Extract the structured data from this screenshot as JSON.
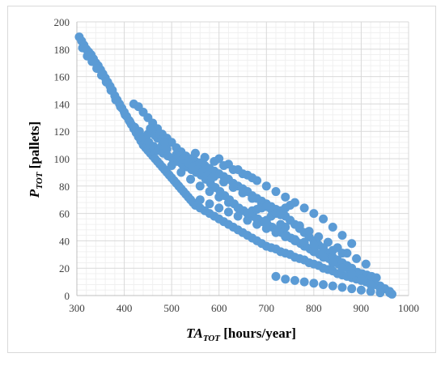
{
  "chart_data": {
    "type": "scatter",
    "title": "",
    "xlabel": {
      "main": "TA",
      "sub": "TOT",
      "unit": " [hours/year]"
    },
    "ylabel": {
      "main": "P",
      "sub": "TOT",
      "unit": " [pallets]"
    },
    "xlim": [
      300,
      1000
    ],
    "ylim": [
      0,
      200
    ],
    "x_ticks": [
      300,
      400,
      500,
      600,
      700,
      800,
      900,
      1000
    ],
    "y_ticks": [
      0,
      20,
      40,
      60,
      80,
      100,
      120,
      140,
      160,
      180,
      200
    ],
    "grid": true,
    "marker_color": "#5B9BD5",
    "series": [
      {
        "points": [
          [
            305,
            189
          ],
          [
            310,
            186
          ],
          [
            315,
            183
          ],
          [
            320,
            180
          ],
          [
            325,
            178
          ],
          [
            330,
            176
          ],
          [
            335,
            173
          ],
          [
            340,
            170
          ],
          [
            345,
            168
          ],
          [
            350,
            165
          ],
          [
            355,
            162
          ],
          [
            360,
            159
          ],
          [
            365,
            156
          ],
          [
            370,
            153
          ],
          [
            375,
            150
          ],
          [
            380,
            146
          ],
          [
            385,
            143
          ],
          [
            390,
            140
          ],
          [
            395,
            137
          ],
          [
            400,
            134
          ],
          [
            405,
            131
          ],
          [
            410,
            128
          ],
          [
            415,
            125
          ],
          [
            420,
            122
          ],
          [
            425,
            119
          ],
          [
            430,
            116
          ],
          [
            435,
            113
          ],
          [
            440,
            110
          ],
          [
            445,
            108
          ],
          [
            450,
            106
          ],
          [
            455,
            104
          ],
          [
            460,
            102
          ],
          [
            465,
            100
          ],
          [
            470,
            98
          ],
          [
            475,
            96
          ],
          [
            480,
            94
          ],
          [
            485,
            92
          ],
          [
            490,
            90
          ],
          [
            495,
            88
          ],
          [
            500,
            86
          ],
          [
            505,
            84
          ],
          [
            510,
            82
          ],
          [
            515,
            80
          ],
          [
            520,
            78
          ],
          [
            525,
            76
          ],
          [
            530,
            74
          ],
          [
            535,
            72
          ],
          [
            540,
            70
          ],
          [
            545,
            68
          ],
          [
            550,
            66
          ],
          [
            560,
            64
          ],
          [
            570,
            62
          ],
          [
            580,
            60
          ],
          [
            590,
            58
          ],
          [
            600,
            56
          ],
          [
            610,
            54
          ],
          [
            620,
            52
          ],
          [
            630,
            50
          ],
          [
            640,
            48
          ],
          [
            650,
            46
          ],
          [
            660,
            44
          ],
          [
            670,
            42
          ],
          [
            680,
            40
          ],
          [
            690,
            38
          ],
          [
            700,
            36
          ],
          [
            710,
            35
          ],
          [
            720,
            34
          ],
          [
            730,
            32
          ],
          [
            740,
            31
          ],
          [
            750,
            30
          ],
          [
            760,
            28
          ],
          [
            770,
            27
          ],
          [
            780,
            26
          ],
          [
            790,
            24
          ],
          [
            800,
            23
          ],
          [
            810,
            22
          ],
          [
            820,
            20
          ],
          [
            830,
            19
          ],
          [
            840,
            18
          ],
          [
            850,
            16
          ],
          [
            860,
            15
          ],
          [
            870,
            14
          ],
          [
            880,
            13
          ],
          [
            890,
            12
          ],
          [
            900,
            11
          ],
          [
            910,
            10
          ],
          [
            920,
            9
          ],
          [
            930,
            8
          ],
          [
            940,
            7
          ],
          [
            950,
            5
          ],
          [
            960,
            3
          ],
          [
            965,
            1
          ],
          [
            312,
            181
          ],
          [
            322,
            175
          ],
          [
            332,
            171
          ],
          [
            342,
            166
          ],
          [
            352,
            161
          ],
          [
            362,
            156
          ],
          [
            372,
            150
          ],
          [
            382,
            143
          ],
          [
            392,
            138
          ],
          [
            402,
            132
          ],
          [
            412,
            127
          ],
          [
            422,
            123
          ],
          [
            432,
            120
          ],
          [
            442,
            116
          ],
          [
            452,
            112
          ],
          [
            462,
            109
          ],
          [
            472,
            106
          ],
          [
            482,
            104
          ],
          [
            492,
            102
          ],
          [
            502,
            100
          ],
          [
            512,
            98
          ],
          [
            522,
            96
          ],
          [
            532,
            94
          ],
          [
            542,
            92
          ],
          [
            552,
            90
          ],
          [
            562,
            88
          ],
          [
            572,
            85
          ],
          [
            582,
            82
          ],
          [
            592,
            79
          ],
          [
            602,
            76
          ],
          [
            612,
            73
          ],
          [
            622,
            70
          ],
          [
            632,
            67
          ],
          [
            642,
            64
          ],
          [
            652,
            62
          ],
          [
            662,
            60
          ],
          [
            672,
            58
          ],
          [
            682,
            56
          ],
          [
            692,
            54
          ],
          [
            702,
            52
          ],
          [
            712,
            50
          ],
          [
            722,
            48
          ],
          [
            732,
            46
          ],
          [
            742,
            44
          ],
          [
            752,
            42
          ],
          [
            762,
            40
          ],
          [
            772,
            38
          ],
          [
            782,
            36
          ],
          [
            792,
            34
          ],
          [
            802,
            32
          ],
          [
            812,
            30
          ],
          [
            822,
            28
          ],
          [
            832,
            27
          ],
          [
            842,
            25
          ],
          [
            852,
            23
          ],
          [
            862,
            22
          ],
          [
            872,
            20
          ],
          [
            882,
            18
          ],
          [
            892,
            17
          ],
          [
            902,
            16
          ],
          [
            912,
            15
          ],
          [
            922,
            14
          ],
          [
            932,
            13
          ],
          [
            420,
            140
          ],
          [
            430,
            138
          ],
          [
            440,
            134
          ],
          [
            450,
            130
          ],
          [
            460,
            126
          ],
          [
            470,
            122
          ],
          [
            480,
            118
          ],
          [
            490,
            115
          ],
          [
            500,
            112
          ],
          [
            510,
            108
          ],
          [
            520,
            105
          ],
          [
            530,
            102
          ],
          [
            540,
            100
          ],
          [
            550,
            98
          ],
          [
            560,
            97
          ],
          [
            570,
            95
          ],
          [
            580,
            93
          ],
          [
            590,
            91
          ],
          [
            600,
            89
          ],
          [
            610,
            87
          ],
          [
            620,
            85
          ],
          [
            630,
            82
          ],
          [
            640,
            80
          ],
          [
            650,
            78
          ],
          [
            660,
            76
          ],
          [
            670,
            73
          ],
          [
            680,
            71
          ],
          [
            690,
            69
          ],
          [
            700,
            67
          ],
          [
            710,
            65
          ],
          [
            720,
            63
          ],
          [
            730,
            61
          ],
          [
            740,
            58
          ],
          [
            750,
            55
          ],
          [
            760,
            52
          ],
          [
            770,
            49
          ],
          [
            780,
            46
          ],
          [
            790,
            43
          ],
          [
            800,
            40
          ],
          [
            810,
            37
          ],
          [
            820,
            34
          ],
          [
            830,
            31
          ],
          [
            840,
            28
          ],
          [
            850,
            26
          ],
          [
            860,
            24
          ],
          [
            870,
            22
          ],
          [
            880,
            20
          ],
          [
            500,
            95
          ],
          [
            520,
            90
          ],
          [
            540,
            85
          ],
          [
            560,
            80
          ],
          [
            580,
            76
          ],
          [
            600,
            72
          ],
          [
            620,
            68
          ],
          [
            640,
            64
          ],
          [
            660,
            60
          ],
          [
            680,
            56
          ],
          [
            700,
            52
          ],
          [
            720,
            48
          ],
          [
            740,
            44
          ],
          [
            760,
            40
          ],
          [
            780,
            36
          ],
          [
            800,
            32
          ],
          [
            820,
            28
          ],
          [
            840,
            24
          ],
          [
            860,
            20
          ],
          [
            880,
            16
          ],
          [
            900,
            12
          ],
          [
            920,
            8
          ],
          [
            940,
            5
          ],
          [
            600,
            100
          ],
          [
            620,
            96
          ],
          [
            640,
            92
          ],
          [
            660,
            88
          ],
          [
            680,
            84
          ],
          [
            700,
            80
          ],
          [
            720,
            76
          ],
          [
            740,
            72
          ],
          [
            760,
            68
          ],
          [
            780,
            64
          ],
          [
            800,
            60
          ],
          [
            820,
            56
          ],
          [
            840,
            50
          ],
          [
            860,
            44
          ],
          [
            880,
            38
          ],
          [
            550,
            104
          ],
          [
            570,
            101
          ],
          [
            590,
            98
          ],
          [
            610,
            95
          ],
          [
            630,
            92
          ],
          [
            650,
            89
          ],
          [
            670,
            86
          ],
          [
            480,
            110
          ],
          [
            490,
            107
          ],
          [
            510,
            103
          ],
          [
            530,
            99
          ],
          [
            550,
            95
          ],
          [
            570,
            91
          ],
          [
            590,
            87
          ],
          [
            610,
            83
          ],
          [
            630,
            79
          ],
          [
            650,
            75
          ],
          [
            670,
            71
          ],
          [
            690,
            67
          ],
          [
            710,
            63
          ],
          [
            730,
            59
          ],
          [
            750,
            55
          ],
          [
            770,
            51
          ],
          [
            790,
            47
          ],
          [
            810,
            43
          ],
          [
            830,
            39
          ],
          [
            850,
            35
          ],
          [
            870,
            31
          ],
          [
            890,
            27
          ],
          [
            910,
            23
          ],
          [
            560,
            70
          ],
          [
            580,
            67
          ],
          [
            600,
            64
          ],
          [
            620,
            61
          ],
          [
            640,
            58
          ],
          [
            660,
            55
          ],
          [
            680,
            52
          ],
          [
            700,
            49
          ],
          [
            720,
            46
          ],
          [
            740,
            43
          ],
          [
            760,
            41
          ],
          [
            780,
            39
          ],
          [
            800,
            37
          ],
          [
            820,
            35
          ],
          [
            840,
            33
          ],
          [
            860,
            31
          ],
          [
            720,
            14
          ],
          [
            740,
            12
          ],
          [
            760,
            11
          ],
          [
            780,
            10
          ],
          [
            800,
            9
          ],
          [
            820,
            8
          ],
          [
            840,
            7
          ],
          [
            860,
            6
          ],
          [
            880,
            5
          ],
          [
            900,
            4
          ],
          [
            920,
            3
          ],
          [
            940,
            2
          ],
          [
            960,
            2
          ],
          [
            700,
            55
          ],
          [
            710,
            58
          ],
          [
            720,
            60
          ],
          [
            730,
            62
          ],
          [
            740,
            64
          ],
          [
            750,
            66
          ],
          [
            730,
            52
          ],
          [
            740,
            50
          ],
          [
            660,
            60
          ],
          [
            670,
            62
          ],
          [
            680,
            63
          ],
          [
            690,
            64
          ],
          [
            700,
            65
          ],
          [
            450,
            118
          ],
          [
            455,
            122
          ],
          [
            460,
            120
          ],
          [
            465,
            117
          ],
          [
            470,
            115
          ],
          [
            475,
            118
          ],
          [
            480,
            114
          ],
          [
            485,
            112
          ],
          [
            515,
            102
          ],
          [
            525,
            100
          ],
          [
            535,
            97
          ],
          [
            545,
            94
          ],
          [
            555,
            92
          ],
          [
            565,
            90
          ],
          [
            575,
            88
          ],
          [
            585,
            86
          ]
        ]
      }
    ]
  }
}
